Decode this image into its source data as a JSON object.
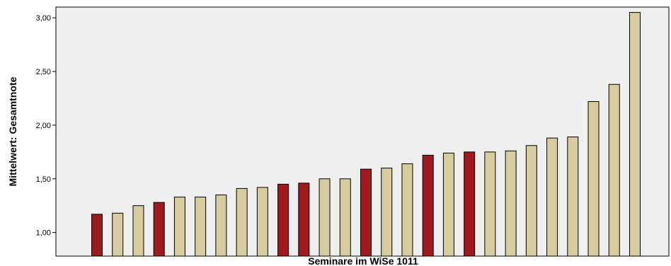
{
  "chart_data": {
    "type": "bar",
    "xlabel": "Seminare im WiSe 1011",
    "ylabel": "Mittelwert: Gesamtnote",
    "ylim": [
      0.78,
      3.1
    ],
    "yticks": [
      1.0,
      1.5,
      2.0,
      2.5,
      3.0
    ],
    "ytick_labels": [
      "1,00",
      "1,50",
      "2,00",
      "2,50",
      "3,00"
    ],
    "grid": false,
    "legend": "none",
    "values": [
      1.17,
      1.18,
      1.25,
      1.28,
      1.33,
      1.33,
      1.35,
      1.41,
      1.42,
      1.45,
      1.46,
      1.5,
      1.5,
      1.59,
      1.6,
      1.64,
      1.72,
      1.74,
      1.75,
      1.75,
      1.76,
      1.81,
      1.88,
      1.89,
      2.22,
      2.38,
      3.05
    ],
    "highlighted": [
      true,
      false,
      false,
      true,
      false,
      false,
      false,
      false,
      false,
      true,
      true,
      false,
      false,
      true,
      false,
      false,
      true,
      false,
      true,
      false,
      false,
      false,
      false,
      false,
      false,
      false,
      false
    ],
    "colors": {
      "background": "#ffffff",
      "plot_area": "#efefef",
      "bar_default": "#d6cc9e",
      "bar_highlight": "#9e1a1f",
      "bar_stroke": "#000000"
    }
  }
}
